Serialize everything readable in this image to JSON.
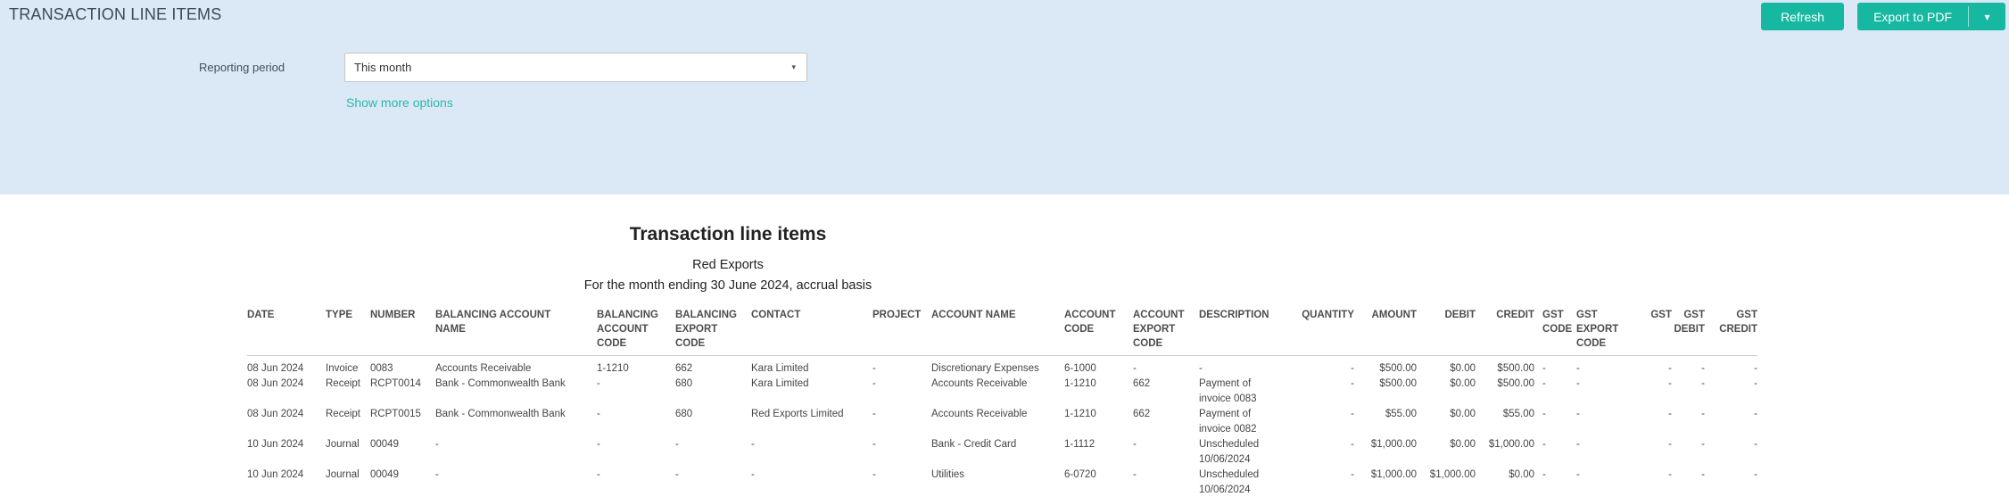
{
  "colors": {
    "accent": "#17b8a1",
    "link": "#2cb9a9",
    "panel_bg": "#dbe8f5"
  },
  "header": {
    "title": "TRANSACTION LINE ITEMS"
  },
  "toolbar": {
    "refresh_label": "Refresh",
    "export_pdf_label": "Export to PDF",
    "caret_icon": "▾"
  },
  "filters": {
    "reporting_period_label": "Reporting period",
    "reporting_period_value": "This month",
    "chevron_icon": "▾",
    "show_more_options_label": "Show more options"
  },
  "report": {
    "title": "Transaction line items",
    "organisation": "Red Exports",
    "period_line": "For the month ending 30 June 2024, accrual basis"
  },
  "table": {
    "columns": [
      "DATE",
      "TYPE",
      "NUMBER",
      "BALANCING ACCOUNT\nNAME",
      "BALANCING\nACCOUNT\nCODE",
      "BALANCING\nEXPORT\nCODE",
      "CONTACT",
      "PROJECT",
      "ACCOUNT NAME",
      "ACCOUNT\nCODE",
      "ACCOUNT\nEXPORT\nCODE",
      "DESCRIPTION",
      "QUANTITY",
      "AMOUNT",
      "DEBIT",
      "CREDIT",
      "GST\nCODE",
      "GST\nEXPORT\nCODE",
      "GST",
      "GST\nDEBIT",
      "GST\nCREDIT"
    ],
    "rows": [
      [
        "08 Jun 2024",
        "Invoice",
        "0083",
        "Accounts Receivable",
        "1-1210",
        "662",
        "Kara Limited",
        "-",
        "Discretionary Expenses",
        "6-1000",
        "-",
        "-",
        "-",
        "$500.00",
        "$0.00",
        "$500.00",
        "-",
        "-",
        "-",
        "-",
        "-"
      ],
      [
        "08 Jun 2024",
        "Receipt",
        "RCPT0014",
        "Bank - Commonwealth Bank",
        "-",
        "680",
        "Kara Limited",
        "-",
        "Accounts Receivable",
        "1-1210",
        "662",
        "Payment of invoice 0083",
        "-",
        "$500.00",
        "$0.00",
        "$500.00",
        "-",
        "-",
        "-",
        "-",
        "-"
      ],
      [
        "08 Jun 2024",
        "Receipt",
        "RCPT0015",
        "Bank - Commonwealth Bank",
        "-",
        "680",
        "Red Exports Limited",
        "-",
        "Accounts Receivable",
        "1-1210",
        "662",
        "Payment of invoice 0082",
        "-",
        "$55.00",
        "$0.00",
        "$55.00",
        "-",
        "-",
        "-",
        "-",
        "-"
      ],
      [
        "10 Jun 2024",
        "Journal",
        "00049",
        "-",
        "-",
        "-",
        "-",
        "-",
        "Bank - Credit Card",
        "1-1112",
        "-",
        "Unscheduled 10/06/2024",
        "-",
        "$1,000.00",
        "$0.00",
        "$1,000.00",
        "-",
        "-",
        "-",
        "-",
        "-"
      ],
      [
        "10 Jun 2024",
        "Journal",
        "00049",
        "-",
        "-",
        "-",
        "-",
        "-",
        "Utilities",
        "6-0720",
        "-",
        "Unscheduled 10/06/2024",
        "-",
        "$1,000.00",
        "$1,000.00",
        "$0.00",
        "-",
        "-",
        "-",
        "-",
        "-"
      ]
    ]
  }
}
